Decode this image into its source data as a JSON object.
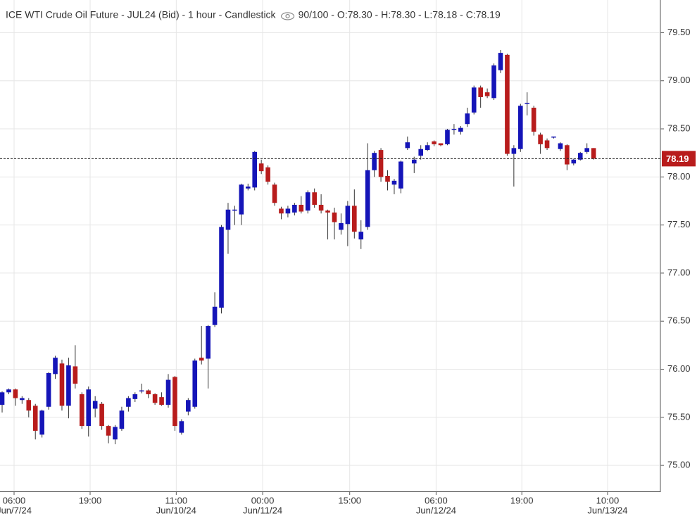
{
  "chart_data": {
    "type": "candlestick",
    "title": "ICE WTI Crude Oil Future - JUL24 (Bid) - 1 hour - Candlestick",
    "header_stats": "90/100 - O:78.30 - H:78.30 - L:78.18 - C:78.19",
    "up_color": "#1515b8",
    "down_color": "#b81c1c",
    "grid": true,
    "xlim": [
      -0.32,
      99.05
    ],
    "xticks": [
      {
        "value": 1.8,
        "label": "06:00",
        "sublabel": "Jun/7/24"
      },
      {
        "value": 13.24,
        "label": "19:00"
      },
      {
        "value": 26.2,
        "label": "11:00",
        "sublabel": "Jun/10/24"
      },
      {
        "value": 39.2,
        "label": "00:00",
        "sublabel": "Jun/11/24"
      },
      {
        "value": 52.3,
        "label": "15:00"
      },
      {
        "value": 65.3,
        "label": "06:00",
        "sublabel": "Jun/12/24"
      },
      {
        "value": 78.2,
        "label": "19:00"
      },
      {
        "value": 91.1,
        "label": "10:00",
        "sublabel": "Jun/13/24"
      }
    ],
    "ylim": [
      74.73,
      79.84
    ],
    "yticks": [
      {
        "value": 75,
        "label": "75.00"
      },
      {
        "value": 75.5,
        "label": "75.50"
      },
      {
        "value": 76,
        "label": "76.00"
      },
      {
        "value": 76.5,
        "label": "76.50"
      },
      {
        "value": 77,
        "label": "77.00"
      },
      {
        "value": 77.5,
        "label": "77.50"
      },
      {
        "value": 78,
        "label": "78.00"
      },
      {
        "value": 78.5,
        "label": "78.50"
      },
      {
        "value": 79,
        "label": "79.00"
      },
      {
        "value": 79.5,
        "label": "79.50"
      }
    ],
    "last_price": 78.19,
    "open": [
      75.63,
      75.76,
      75.79,
      75.68,
      75.68,
      75.62,
      75.32,
      75.61,
      75.95,
      76.06,
      75.62,
      76.03,
      75.74,
      75.41,
      75.59,
      75.64,
      75.41,
      75.27,
      75.38,
      75.61,
      75.69,
      75.77,
      75.78,
      75.74,
      75.71,
      75.63,
      75.92,
      75.34,
      75.56,
      75.61,
      76.12,
      76.11,
      76.46,
      76.64,
      77.45,
      77.65,
      77.61,
      77.88,
      77.89,
      78.14,
      78.1,
      77.92,
      77.67,
      77.62,
      77.63,
      77.71,
      77.65,
      77.84,
      77.71,
      77.65,
      77.63,
      77.45,
      77.51,
      77.7,
      77.35,
      77.48,
      78.07,
      78.28,
      78.01,
      77.92,
      77.88,
      78.3,
      78.14,
      78.22,
      78.28,
      78.37,
      78.35,
      78.34,
      78.49,
      78.47,
      78.55,
      78.67,
      78.93,
      78.88,
      78.82,
      79.11,
      79.27,
      78.24,
      78.29,
      78.76,
      78.72,
      78.44,
      78.38,
      78.41,
      78.29,
      78.33,
      78.14,
      78.18,
      78.26,
      78.3
    ],
    "high": [
      75.77,
      75.8,
      75.8,
      75.72,
      75.7,
      75.64,
      75.58,
      75.97,
      76.14,
      76.1,
      76.12,
      76.25,
      75.76,
      75.82,
      75.72,
      75.66,
      75.42,
      75.42,
      75.61,
      75.72,
      75.76,
      75.85,
      75.79,
      75.75,
      75.76,
      75.95,
      75.93,
      75.48,
      75.7,
      76.11,
      76.45,
      76.46,
      76.8,
      77.5,
      77.73,
      77.7,
      77.93,
      77.93,
      78.27,
      78.18,
      78.12,
      77.94,
      77.69,
      77.7,
      77.73,
      77.8,
      77.86,
      77.88,
      77.82,
      77.66,
      77.68,
      77.62,
      77.75,
      77.87,
      77.55,
      78.35,
      78.27,
      78.3,
      78.07,
      77.98,
      78.17,
      78.42,
      78.21,
      78.33,
      78.36,
      78.38,
      78.35,
      78.5,
      78.55,
      78.53,
      78.72,
      78.95,
      78.95,
      78.92,
      79.18,
      79.32,
      79.28,
      78.33,
      78.76,
      78.88,
      78.74,
      78.46,
      78.4,
      78.42,
      78.36,
      78.34,
      78.19,
      78.26,
      78.35,
      78.3
    ],
    "low": [
      75.55,
      75.74,
      75.62,
      75.64,
      75.5,
      75.27,
      75.29,
      75.58,
      75.9,
      75.57,
      75.49,
      75.8,
      75.38,
      75.3,
      75.5,
      75.37,
      75.23,
      75.22,
      75.36,
      75.56,
      75.66,
      75.75,
      75.7,
      75.63,
      75.62,
      75.6,
      75.36,
      75.32,
      75.52,
      75.59,
      76.05,
      75.8,
      76.44,
      76.58,
      77.2,
      77.5,
      77.5,
      77.86,
      77.86,
      78.03,
      77.92,
      77.7,
      77.56,
      77.58,
      77.6,
      77.62,
      77.62,
      77.68,
      77.62,
      77.35,
      77.35,
      77.4,
      77.28,
      77.36,
      77.25,
      77.45,
      78.0,
      77.95,
      77.86,
      77.82,
      77.83,
      78.28,
      78.04,
      78.18,
      78.27,
      78.32,
      78.32,
      78.33,
      78.44,
      78.44,
      78.52,
      78.65,
      78.72,
      78.82,
      78.8,
      79.08,
      78.22,
      77.9,
      78.26,
      78.64,
      78.43,
      78.24,
      78.28,
      78.4,
      78.27,
      78.07,
      78.12,
      78.17,
      78.24,
      78.18
    ],
    "close": [
      75.76,
      75.79,
      75.7,
      75.7,
      75.57,
      75.36,
      75.57,
      75.96,
      76.12,
      75.62,
      76.04,
      75.85,
      75.41,
      75.79,
      75.67,
      75.41,
      75.31,
      75.4,
      75.57,
      75.7,
      75.74,
      75.78,
      75.74,
      75.65,
      75.63,
      75.89,
      75.41,
      75.46,
      75.68,
      76.09,
      76.09,
      76.45,
      76.65,
      77.48,
      77.66,
      77.66,
      77.92,
      77.9,
      78.26,
      78.06,
      77.95,
      77.73,
      77.62,
      77.67,
      77.71,
      77.64,
      77.84,
      77.71,
      77.65,
      77.63,
      77.53,
      77.52,
      77.7,
      77.43,
      77.43,
      78.07,
      78.25,
      78.0,
      77.95,
      77.96,
      78.16,
      78.36,
      78.18,
      78.29,
      78.33,
      78.34,
      78.33,
      78.49,
      78.5,
      78.51,
      78.66,
      78.93,
      78.83,
      78.84,
      79.16,
      79.29,
      78.24,
      78.3,
      78.74,
      78.77,
      78.47,
      78.34,
      78.3,
      78.42,
      78.35,
      78.13,
      78.18,
      78.25,
      78.3,
      78.19
    ]
  }
}
